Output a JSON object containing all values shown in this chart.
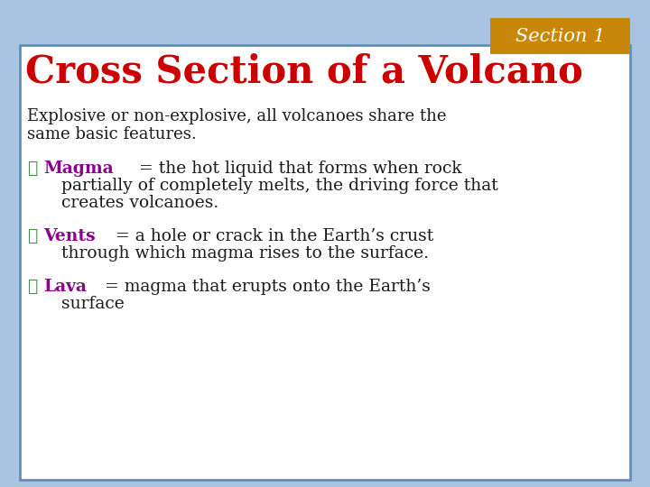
{
  "section_label": "Section 1",
  "section_bg": "#C8860A",
  "section_text_color": "#FFFFFF",
  "title": "Cross Section of a Volcano",
  "title_color": "#CC0000",
  "subtitle_line1": "Explosive or non-explosive, all volcanoes share the",
  "subtitle_line2": "same basic features.",
  "subtitle_color": "#1a1a1a",
  "bullet_char": "❖",
  "bullet_color": "#4A8A4A",
  "keyword_color": "#8B008B",
  "body_color": "#1a1a1a",
  "bullets": [
    {
      "keyword": "Magma",
      "line1_rest": " = the hot liquid that forms when rock",
      "line2": "  partially of completely melts, the driving force that",
      "line3": "  creates volcanoes."
    },
    {
      "keyword": "Vents",
      "line1_rest": " = a hole or crack in the Earth’s crust",
      "line2": "  through which magma rises to the surface.",
      "line3": null
    },
    {
      "keyword": "Lava",
      "line1_rest": " = magma that erupts onto the Earth’s",
      "line2": "  surface",
      "line3": null
    }
  ],
  "background_color": "#A8C4E0",
  "card_color": "#FFFFFF",
  "card_border_color": "#6090B8"
}
